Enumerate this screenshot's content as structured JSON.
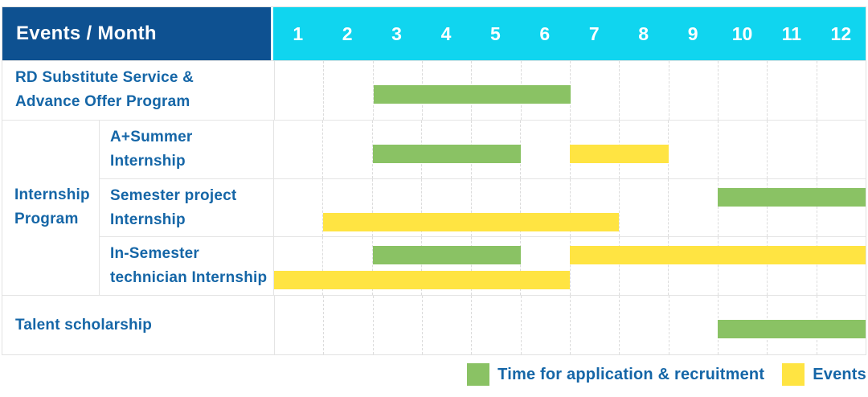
{
  "header": {
    "corner_label": "Events / Month"
  },
  "colors": {
    "header_bg": "#0E5191",
    "months_bg": "#10D5EF",
    "green": "#8AC264",
    "yellow": "#FFE442",
    "text_blue": "#1566A7",
    "grid_line": "#e4e4e4"
  },
  "legend": [
    {
      "label": "Time for application & recruitment",
      "color": "#8AC264"
    },
    {
      "label": "Events",
      "color": "#FFE442"
    }
  ],
  "chart_data": {
    "type": "gantt",
    "title": "Events / Month",
    "x_axis": {
      "label": "Month",
      "range": [
        1,
        12
      ],
      "ticks": [
        "1",
        "2",
        "3",
        "4",
        "5",
        "6",
        "7",
        "8",
        "9",
        "10",
        "11",
        "12"
      ]
    },
    "grid": "on",
    "legend_position": "bottom-right",
    "legend": [
      {
        "name": "Time for application & recruitment",
        "color": "#8AC264"
      },
      {
        "name": "Events",
        "color": "#FFE442"
      }
    ],
    "group_label": "Internship Program",
    "group_label_lines": [
      "Internship",
      "Program"
    ],
    "rows": [
      {
        "group": "",
        "label": "RD Substitute Service & Advance Offer Program",
        "label_lines": [
          "RD Substitute Service &",
          "Advance Offer Program"
        ],
        "bars": [
          {
            "series": "Time for application & recruitment",
            "color": "green",
            "start_month": 3,
            "end_month": 6,
            "lane": "middle"
          }
        ]
      },
      {
        "group": "Internship Program",
        "label": "A+Summer Internship",
        "label_lines": [
          "A+Summer",
          "Internship"
        ],
        "bars": [
          {
            "series": "Time for application & recruitment",
            "color": "green",
            "start_month": 3,
            "end_month": 5,
            "lane": "middle"
          },
          {
            "series": "Events",
            "color": "yellow",
            "start_month": 7,
            "end_month": 8,
            "lane": "middle"
          }
        ]
      },
      {
        "group": "Internship Program",
        "label": "Semester project Internship",
        "label_lines": [
          "Semester project",
          "Internship"
        ],
        "bars": [
          {
            "series": "Time for application & recruitment",
            "color": "green",
            "start_month": 10,
            "end_month": 12,
            "lane": "top"
          },
          {
            "series": "Events",
            "color": "yellow",
            "start_month": 2,
            "end_month": 7,
            "lane": "bottom"
          }
        ]
      },
      {
        "group": "Internship Program",
        "label": "In-Semester technician Internship",
        "label_lines": [
          "In-Semester",
          "technician Internship"
        ],
        "bars": [
          {
            "series": "Time for application & recruitment",
            "color": "green",
            "start_month": 3,
            "end_month": 5,
            "lane": "top"
          },
          {
            "series": "Events",
            "color": "yellow",
            "start_month": 7,
            "end_month": 12,
            "lane": "top"
          },
          {
            "series": "Events",
            "color": "yellow",
            "start_month": 1,
            "end_month": 6,
            "lane": "bottom"
          }
        ]
      },
      {
        "group": "",
        "label": "Talent scholarship",
        "label_lines": [
          "Talent scholarship"
        ],
        "bars": [
          {
            "series": "Time for application & recruitment",
            "color": "green",
            "start_month": 10,
            "end_month": 12,
            "lane": "middle"
          }
        ]
      }
    ]
  }
}
